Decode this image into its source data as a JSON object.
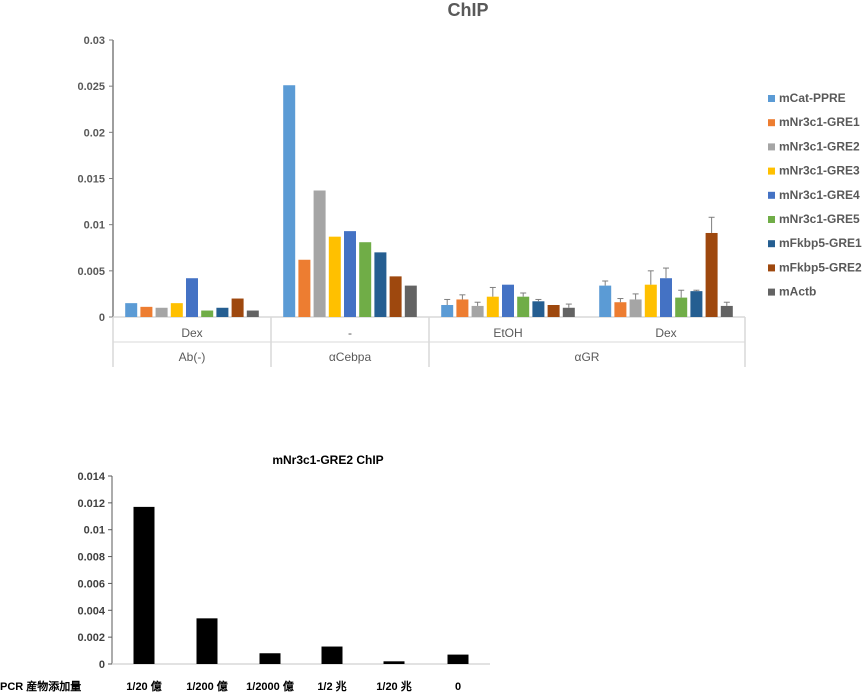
{
  "chart_data": [
    {
      "type": "bar",
      "title": "ChIP",
      "xlabel": "",
      "ylabel": "",
      "ylim": [
        0,
        0.03
      ],
      "yticks": [
        "0",
        "0.005",
        "0.01",
        "0.015",
        "0.02",
        "0.025",
        "0.03"
      ],
      "ytick_values": [
        0,
        0.005,
        0.01,
        0.015,
        0.02,
        0.025,
        0.03
      ],
      "grid": false,
      "legend_position": "right",
      "categories": [
        "Dex",
        "-",
        "EtOH",
        "Dex"
      ],
      "category_groups": [
        {
          "label": "Ab(-)",
          "span": 1
        },
        {
          "label": "αCebpa",
          "span": 1
        },
        {
          "label": "αGR",
          "span": 2
        }
      ],
      "series": [
        {
          "name": "mCat-PPRE",
          "color": "#5B9BD5",
          "values": [
            0.0015,
            0.0251,
            0.0013,
            0.0034
          ],
          "errors": [
            0,
            0,
            0.0006,
            0.0005
          ]
        },
        {
          "name": "mNr3c1-GRE1",
          "color": "#ED7D31",
          "values": [
            0.0011,
            0.0062,
            0.0019,
            0.0016
          ],
          "errors": [
            0,
            0,
            0.0005,
            0.0004
          ]
        },
        {
          "name": "mNr3c1-GRE2",
          "color": "#A5A5A5",
          "values": [
            0.001,
            0.0137,
            0.0012,
            0.0019
          ],
          "errors": [
            0,
            0,
            0.0004,
            0.0006
          ]
        },
        {
          "name": "mNr3c1-GRE3",
          "color": "#FFC000",
          "values": [
            0.0015,
            0.0087,
            0.0022,
            0.0035
          ],
          "errors": [
            0,
            0,
            0.001,
            0.0015
          ]
        },
        {
          "name": "mNr3c1-GRE4",
          "color": "#4472C4",
          "values": [
            0.0042,
            0.0093,
            0.0035,
            0.0042
          ],
          "errors": [
            0,
            0,
            0,
            0.0011
          ]
        },
        {
          "name": "mNr3c1-GRE5",
          "color": "#70AD47",
          "values": [
            0.0007,
            0.0081,
            0.0022,
            0.0021
          ],
          "errors": [
            0,
            0,
            0.0004,
            0.0008
          ]
        },
        {
          "name": "mFkbp5-GRE1",
          "color": "#255E91",
          "values": [
            0.001,
            0.007,
            0.0017,
            0.0028
          ],
          "errors": [
            0,
            0,
            0.0002,
            0.0001
          ]
        },
        {
          "name": "mFkbp5-GRE2",
          "color": "#9E480E",
          "values": [
            0.002,
            0.0044,
            0.0013,
            0.0091
          ],
          "errors": [
            0,
            0,
            0,
            0.0017
          ]
        },
        {
          "name": "mActb",
          "color": "#636363",
          "values": [
            0.0007,
            0.0034,
            0.001,
            0.0012
          ],
          "errors": [
            0,
            0,
            0.0004,
            0.0004
          ]
        }
      ]
    },
    {
      "type": "bar",
      "title": "mNr3c1-GRE2 ChIP",
      "xlabel": "PCR 産物添加量",
      "ylabel": "",
      "ylim": [
        0,
        0.014
      ],
      "yticks": [
        "0",
        "0.002",
        "0.004",
        "0.006",
        "0.008",
        "0.01",
        "0.012",
        "0.014"
      ],
      "ytick_values": [
        0,
        0.002,
        0.004,
        0.006,
        0.008,
        0.01,
        0.012,
        0.014
      ],
      "grid": false,
      "categories": [
        "1/20 億",
        "1/200 億",
        "1/2000 億",
        "1/2 兆",
        "1/20 兆",
        "0"
      ],
      "values": [
        0.0117,
        0.0034,
        0.0008,
        0.0013,
        0.0002,
        0.0007
      ],
      "color": "#000000"
    }
  ]
}
